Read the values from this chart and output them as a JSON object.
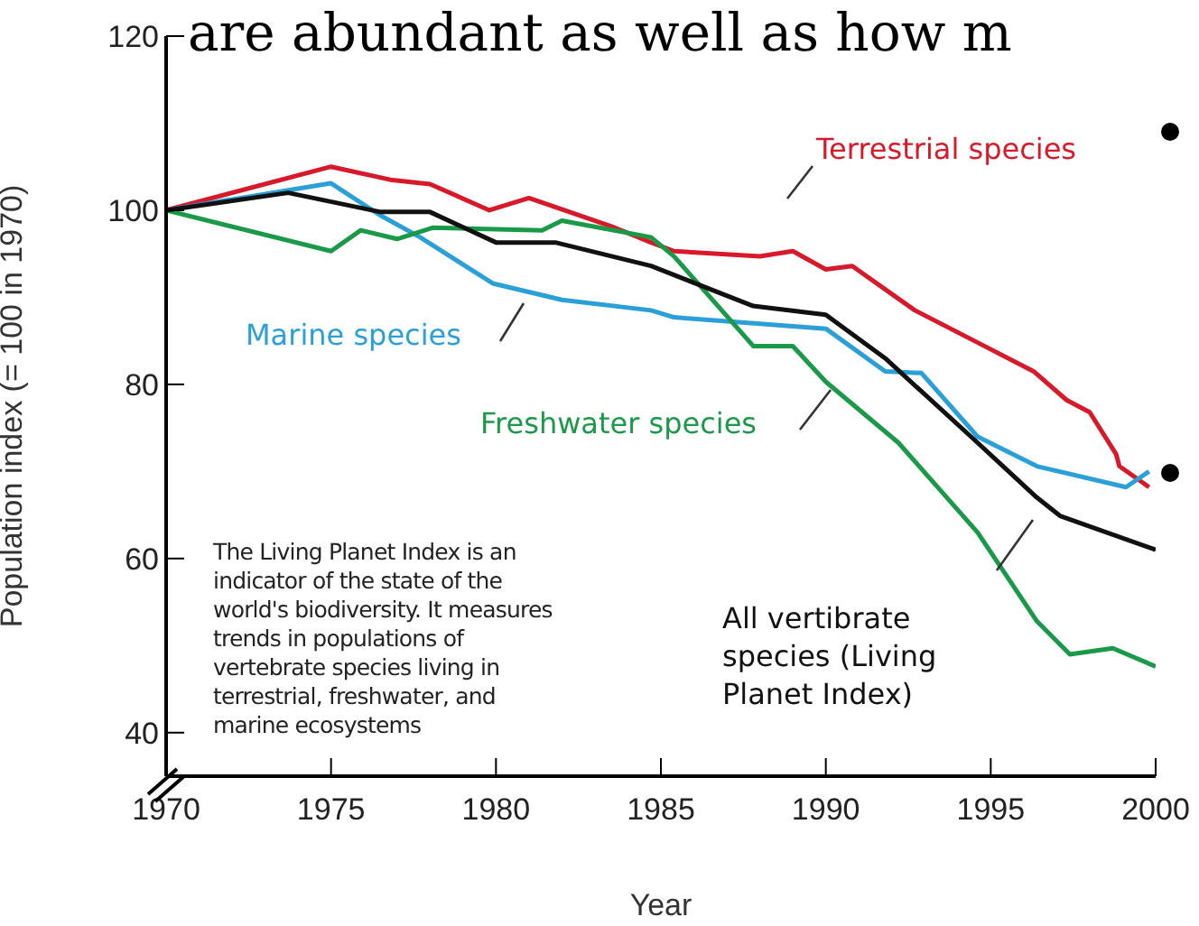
{
  "chart_data": {
    "type": "line",
    "xlabel": "Year",
    "ylabel": "Population index (= 100 in 1970)",
    "xlim": [
      1970,
      2000
    ],
    "ylim": [
      35,
      120
    ],
    "xticks": [
      1970,
      1975,
      1980,
      1985,
      1990,
      1995,
      2000
    ],
    "yticks": [
      40,
      60,
      80,
      100,
      120
    ],
    "marker": "none",
    "line_style": "solid",
    "annotations": [
      "are abundant as well as how m",
      "The Living Planet Index is an indicator of the state of the world's biodiversity. It measures trends in populations of vertebrate species living in terrestrial, freshwater, and marine ecosystems"
    ],
    "series": [
      {
        "name": "Terrestrial species",
        "color": "#d7192a",
        "x": [
          1970,
          1975,
          1976.8,
          1978,
          1979.8,
          1981,
          1983.6,
          1984.7,
          1985.4,
          1988,
          1989,
          1990,
          1990.8,
          1992.7,
          1994.5,
          1996.3,
          1997.3,
          1998,
          1998.8,
          1998.9,
          1999.8
        ],
        "values": [
          100,
          105,
          103.5,
          103,
          100,
          101.4,
          98,
          96.3,
          95.3,
          94.7,
          95.3,
          93.2,
          93.6,
          88.5,
          85,
          81.5,
          78.2,
          76.8,
          72,
          70.6,
          68.2
        ]
      },
      {
        "name": "Marine species",
        "color": "#2a9fd8",
        "x": [
          1970,
          1975,
          1976.5,
          1977.7,
          1979.9,
          1982,
          1984.7,
          1985.4,
          1990,
          1991.8,
          1992.9,
          1994.6,
          1996.4,
          1999.1,
          1999.8
        ],
        "values": [
          100,
          103.1,
          99.4,
          96.9,
          91.6,
          89.7,
          88.5,
          87.7,
          86.4,
          81.5,
          81.3,
          74,
          70.6,
          68.2,
          70
        ]
      },
      {
        "name": "Freshwater species",
        "color": "#1a9a48",
        "x": [
          1970,
          1975,
          1975.9,
          1977,
          1978.1,
          1981.4,
          1982,
          1984.7,
          1985.4,
          1987.8,
          1989,
          1990,
          1992.2,
          1994.6,
          1996.4,
          1997.4,
          1998.7,
          2000
        ],
        "values": [
          100,
          95.3,
          97.7,
          96.7,
          98,
          97.7,
          98.8,
          96.9,
          94.7,
          84.4,
          84.4,
          80.3,
          73.3,
          63,
          52.8,
          49,
          49.7,
          47.6
        ]
      },
      {
        "name": "All vertibrate species (Living Planet Index)",
        "color": "#111111",
        "x": [
          1970,
          1973.7,
          1976.5,
          1978,
          1980,
          1981.8,
          1984.7,
          1987.8,
          1990,
          1991.8,
          1994.6,
          1996.4,
          1997.1,
          2000
        ],
        "values": [
          100,
          102,
          99.8,
          99.8,
          96.3,
          96.3,
          93.6,
          89,
          88,
          83,
          73.3,
          67,
          64.9,
          61
        ]
      }
    ]
  }
}
